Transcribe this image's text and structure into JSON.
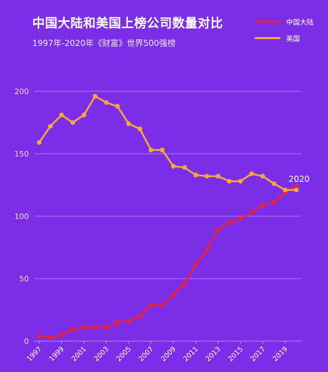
{
  "title": "中国大陆和美国上榜公司数量对比",
  "subtitle": "1997年-2020年《财富》世界500强榜",
  "legend": [
    {
      "label": "中国大陆",
      "color": "#e8213a"
    },
    {
      "label": "美国",
      "color": "#f5a742"
    }
  ],
  "chart_data": {
    "type": "line",
    "title": "中国大陆和美国上榜公司数量对比",
    "subtitle": "1997年-2020年《财富》世界500强榜",
    "xlabel": "",
    "ylabel": "",
    "x": [
      1997,
      1998,
      1999,
      2000,
      2001,
      2002,
      2003,
      2004,
      2005,
      2006,
      2007,
      2008,
      2009,
      2010,
      2011,
      2012,
      2013,
      2014,
      2015,
      2016,
      2017,
      2018,
      2019,
      2020
    ],
    "ylim": [
      0,
      200
    ],
    "yticks": [
      0,
      50,
      100,
      150,
      200
    ],
    "xticks": [
      "1997",
      "1999",
      "2001",
      "2003",
      "2005",
      "2007",
      "2009",
      "2011",
      "2013",
      "2015",
      "2017",
      "2019"
    ],
    "grid": true,
    "legend_position": "top-right",
    "series": [
      {
        "name": "中国大陆",
        "color": "#e8213a",
        "values": [
          4,
          3,
          5,
          9,
          11,
          11,
          11,
          15,
          16,
          20,
          29,
          29,
          37,
          46,
          61,
          73,
          89,
          95,
          98,
          103,
          109,
          111,
          119,
          124
        ]
      },
      {
        "name": "美国",
        "color": "#f5a742",
        "values": [
          159,
          172,
          181,
          175,
          181,
          196,
          191,
          188,
          174,
          170,
          153,
          153,
          140,
          139,
          133,
          132,
          132,
          128,
          128,
          134,
          132,
          126,
          121,
          121
        ]
      }
    ],
    "annotations": [
      {
        "text": "2020",
        "x": 2020
      }
    ]
  }
}
